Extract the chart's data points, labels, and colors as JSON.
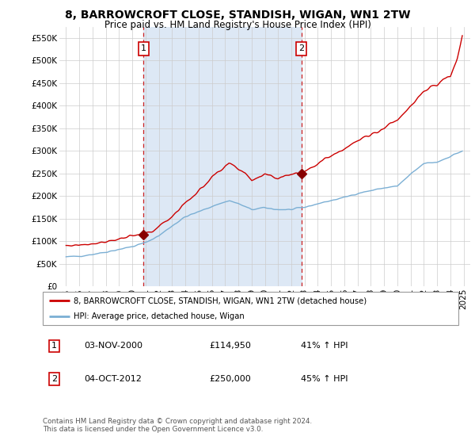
{
  "title": "8, BARROWCROFT CLOSE, STANDISH, WIGAN, WN1 2TW",
  "subtitle": "Price paid vs. HM Land Registry's House Price Index (HPI)",
  "ylim": [
    0,
    575000
  ],
  "yticks": [
    0,
    50000,
    100000,
    150000,
    200000,
    250000,
    300000,
    350000,
    400000,
    450000,
    500000,
    550000
  ],
  "ytick_labels": [
    "£0",
    "£50K",
    "£100K",
    "£150K",
    "£200K",
    "£250K",
    "£300K",
    "£350K",
    "£400K",
    "£450K",
    "£500K",
    "£550K"
  ],
  "xtick_years": [
    1995,
    1996,
    1997,
    1998,
    1999,
    2000,
    2001,
    2002,
    2003,
    2004,
    2005,
    2006,
    2007,
    2008,
    2009,
    2010,
    2011,
    2012,
    2013,
    2014,
    2015,
    2016,
    2017,
    2018,
    2019,
    2020,
    2021,
    2022,
    2023,
    2024,
    2025
  ],
  "xlim_left": 1994.5,
  "xlim_right": 2025.5,
  "sale1_x": 2000.84,
  "sale1_y": 114950,
  "sale1_label": "1",
  "sale2_x": 2012.75,
  "sale2_y": 250000,
  "sale2_label": "2",
  "sale_marker_color": "#880000",
  "sale_vline_color": "#cc2222",
  "red_line_color": "#cc0000",
  "blue_line_color": "#7bafd4",
  "shade_color": "#dde8f5",
  "grid_color": "#cccccc",
  "legend_label_red": "8, BARROWCROFT CLOSE, STANDISH, WIGAN, WN1 2TW (detached house)",
  "legend_label_blue": "HPI: Average price, detached house, Wigan",
  "table_row1": [
    "1",
    "03-NOV-2000",
    "£114,950",
    "41% ↑ HPI"
  ],
  "table_row2": [
    "2",
    "04-OCT-2012",
    "£250,000",
    "45% ↑ HPI"
  ],
  "footnote": "Contains HM Land Registry data © Crown copyright and database right 2024.\nThis data is licensed under the Open Government Licence v3.0.",
  "title_fontsize": 10,
  "subtitle_fontsize": 8.5,
  "tick_fontsize": 7.5
}
